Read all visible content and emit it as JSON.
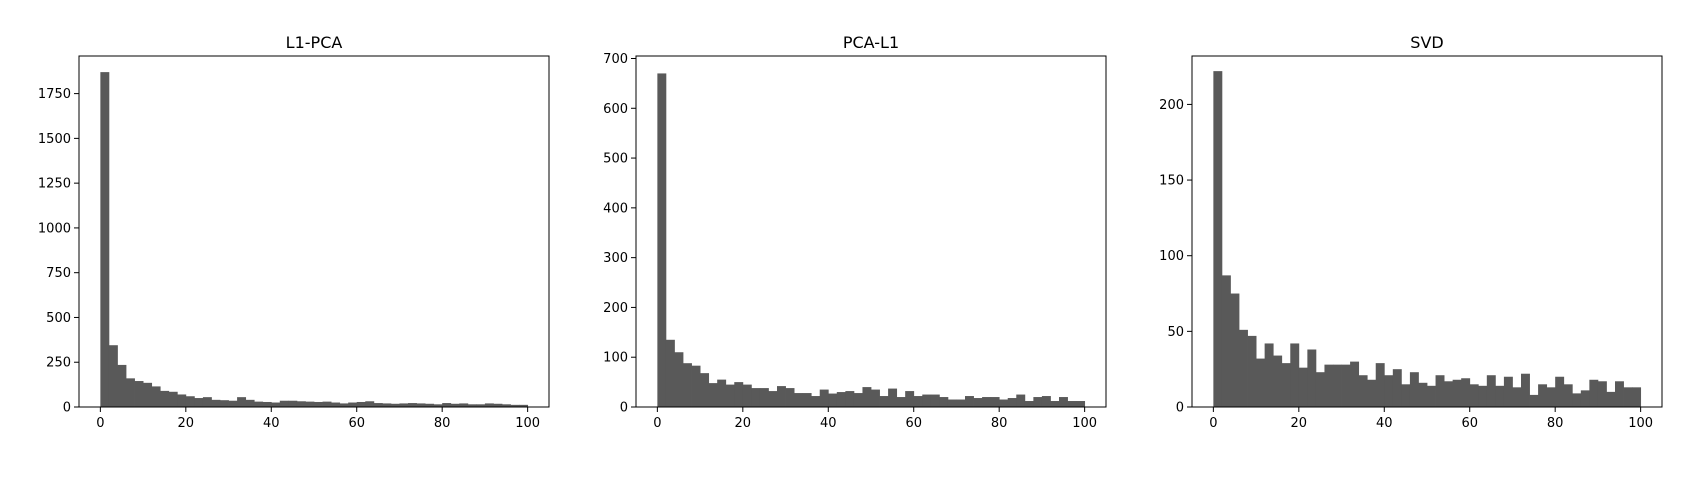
{
  "bar_color": "#595959",
  "chart_data": [
    {
      "type": "bar",
      "title": "L1-PCA",
      "xlabel": "",
      "ylabel": "",
      "grid": false,
      "xlim": [
        -5,
        105
      ],
      "ylim": [
        0,
        1960
      ],
      "bin_start": 0,
      "bin_width": 2,
      "xticks": [
        0,
        20,
        40,
        60,
        80,
        100
      ],
      "yticks": [
        0,
        250,
        500,
        750,
        1000,
        1250,
        1500,
        1750
      ],
      "values": [
        1870,
        345,
        235,
        160,
        145,
        135,
        115,
        90,
        85,
        70,
        60,
        50,
        55,
        40,
        38,
        35,
        55,
        40,
        30,
        28,
        25,
        35,
        35,
        32,
        30,
        28,
        30,
        25,
        20,
        25,
        28,
        32,
        22,
        20,
        18,
        20,
        22,
        20,
        18,
        15,
        22,
        18,
        20,
        15,
        15,
        20,
        18,
        15,
        12,
        12
      ]
    },
    {
      "type": "bar",
      "title": "PCA-L1",
      "xlabel": "",
      "ylabel": "",
      "grid": false,
      "xlim": [
        -5,
        105
      ],
      "ylim": [
        0,
        705
      ],
      "bin_start": 0,
      "bin_width": 2,
      "xticks": [
        0,
        20,
        40,
        60,
        80,
        100
      ],
      "yticks": [
        0,
        100,
        200,
        300,
        400,
        500,
        600,
        700
      ],
      "values": [
        670,
        135,
        110,
        88,
        83,
        68,
        48,
        55,
        45,
        50,
        45,
        38,
        38,
        32,
        42,
        38,
        28,
        28,
        22,
        35,
        27,
        30,
        32,
        28,
        40,
        35,
        22,
        37,
        20,
        32,
        22,
        25,
        25,
        20,
        15,
        15,
        22,
        18,
        20,
        20,
        15,
        18,
        25,
        12,
        20,
        22,
        12,
        20,
        12,
        12
      ]
    },
    {
      "type": "bar",
      "title": "SVD",
      "xlabel": "",
      "ylabel": "",
      "grid": false,
      "xlim": [
        -5,
        105
      ],
      "ylim": [
        0,
        232
      ],
      "bin_start": 0,
      "bin_width": 2,
      "xticks": [
        0,
        20,
        40,
        60,
        80,
        100
      ],
      "yticks": [
        0,
        50,
        100,
        150,
        200
      ],
      "values": [
        222,
        87,
        75,
        51,
        47,
        32,
        42,
        34,
        29,
        42,
        26,
        38,
        23,
        28,
        28,
        28,
        30,
        21,
        18,
        29,
        21,
        25,
        15,
        23,
        16,
        14,
        21,
        17,
        18,
        19,
        15,
        14,
        21,
        14,
        20,
        13,
        22,
        8,
        15,
        13,
        20,
        15,
        9,
        11,
        18,
        17,
        10,
        17,
        13,
        13
      ]
    }
  ]
}
